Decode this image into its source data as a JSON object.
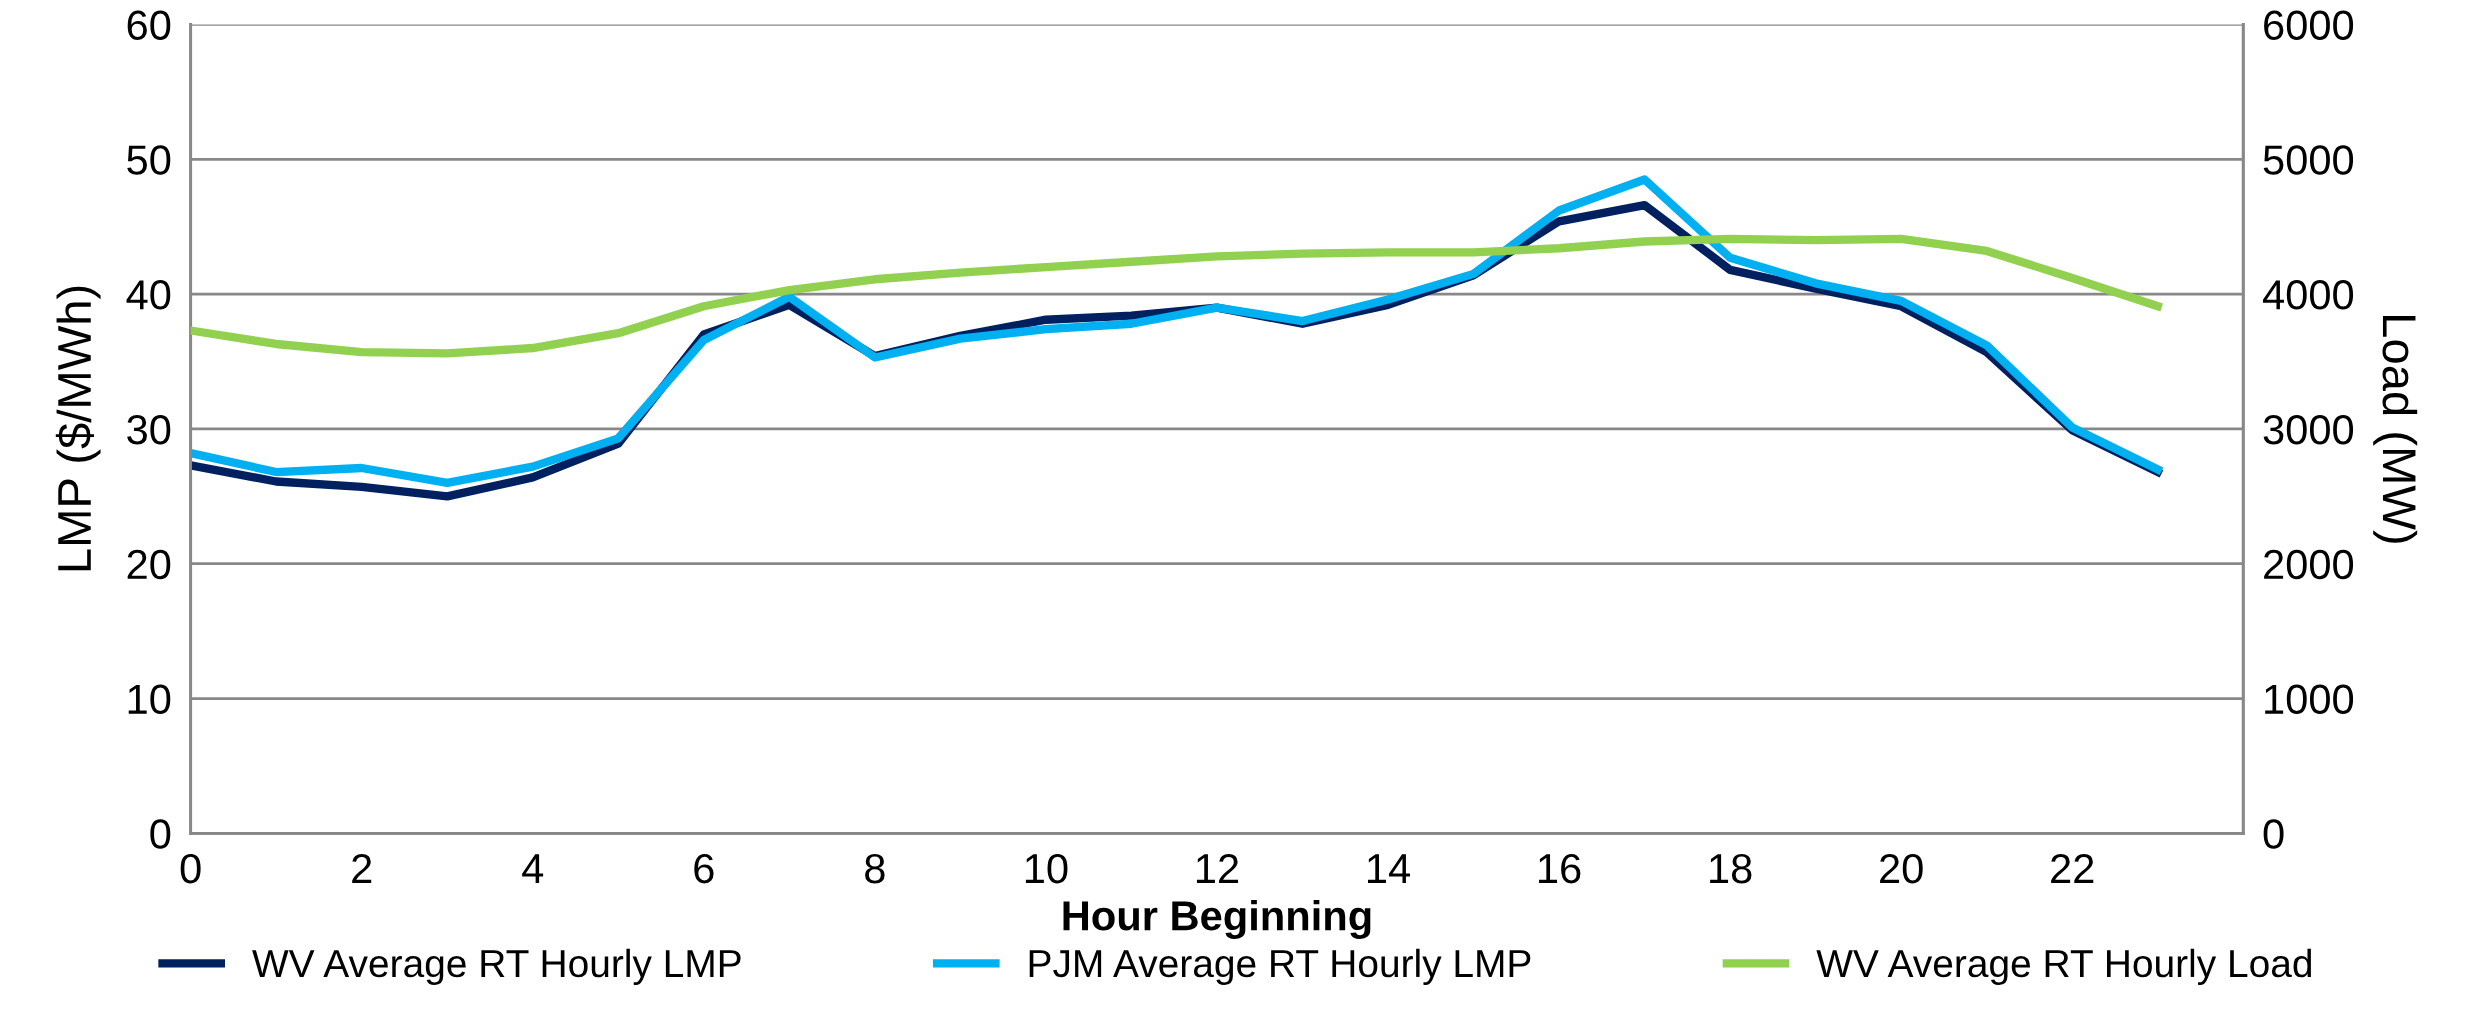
{
  "chart_data": {
    "type": "line",
    "xlabel": "Hour Beginning",
    "ylabel": "LMP ($/MWh)",
    "y2label": "Load (MW)",
    "x": [
      0,
      1,
      2,
      3,
      4,
      5,
      6,
      7,
      8,
      9,
      10,
      11,
      12,
      13,
      14,
      15,
      16,
      17,
      18,
      19,
      20,
      21,
      22,
      23
    ],
    "xlim": [
      0,
      24
    ],
    "xticks": [
      0,
      2,
      4,
      6,
      8,
      10,
      12,
      14,
      16,
      18,
      20,
      22
    ],
    "ylim": [
      0,
      60
    ],
    "yticks": [
      0,
      10,
      20,
      30,
      40,
      50,
      60
    ],
    "y2lim": [
      0,
      6000
    ],
    "y2ticks": [
      0,
      1000,
      2000,
      3000,
      4000,
      5000,
      6000
    ],
    "grid": "y",
    "legend": "bottom",
    "marker": "none",
    "line_style": "solid",
    "series": [
      {
        "name": "WV Average RT Hourly LMP",
        "color": "#002060",
        "values": [
          27.3,
          26.1,
          25.7,
          25.0,
          26.4,
          28.9,
          37.0,
          39.2,
          35.4,
          36.9,
          38.1,
          38.4,
          39.0,
          37.8,
          39.2,
          41.4,
          45.4,
          46.6,
          41.8,
          40.4,
          39.1,
          35.7,
          29.9,
          26.8
        ]
      },
      {
        "name": "PJM Average RT Hourly LMP",
        "color": "#00b0f0",
        "values": [
          28.2,
          26.8,
          27.1,
          26.0,
          27.2,
          29.3,
          36.6,
          39.8,
          35.3,
          36.7,
          37.4,
          37.8,
          39.0,
          38.0,
          39.6,
          41.5,
          46.2,
          48.5,
          42.7,
          40.8,
          39.5,
          36.2,
          30.1,
          27.0
        ]
      },
      {
        "name": "WV Average RT Hourly Load",
        "color": "#92d050",
        "axis": "y2",
        "values": [
          3730,
          3630,
          3570,
          3560,
          3600,
          3710,
          3910,
          4030,
          4110,
          4160,
          4200,
          4240,
          4280,
          4300,
          4310,
          4310,
          4340,
          4390,
          4410,
          4400,
          4410,
          4320,
          4120,
          3910
        ]
      }
    ]
  }
}
